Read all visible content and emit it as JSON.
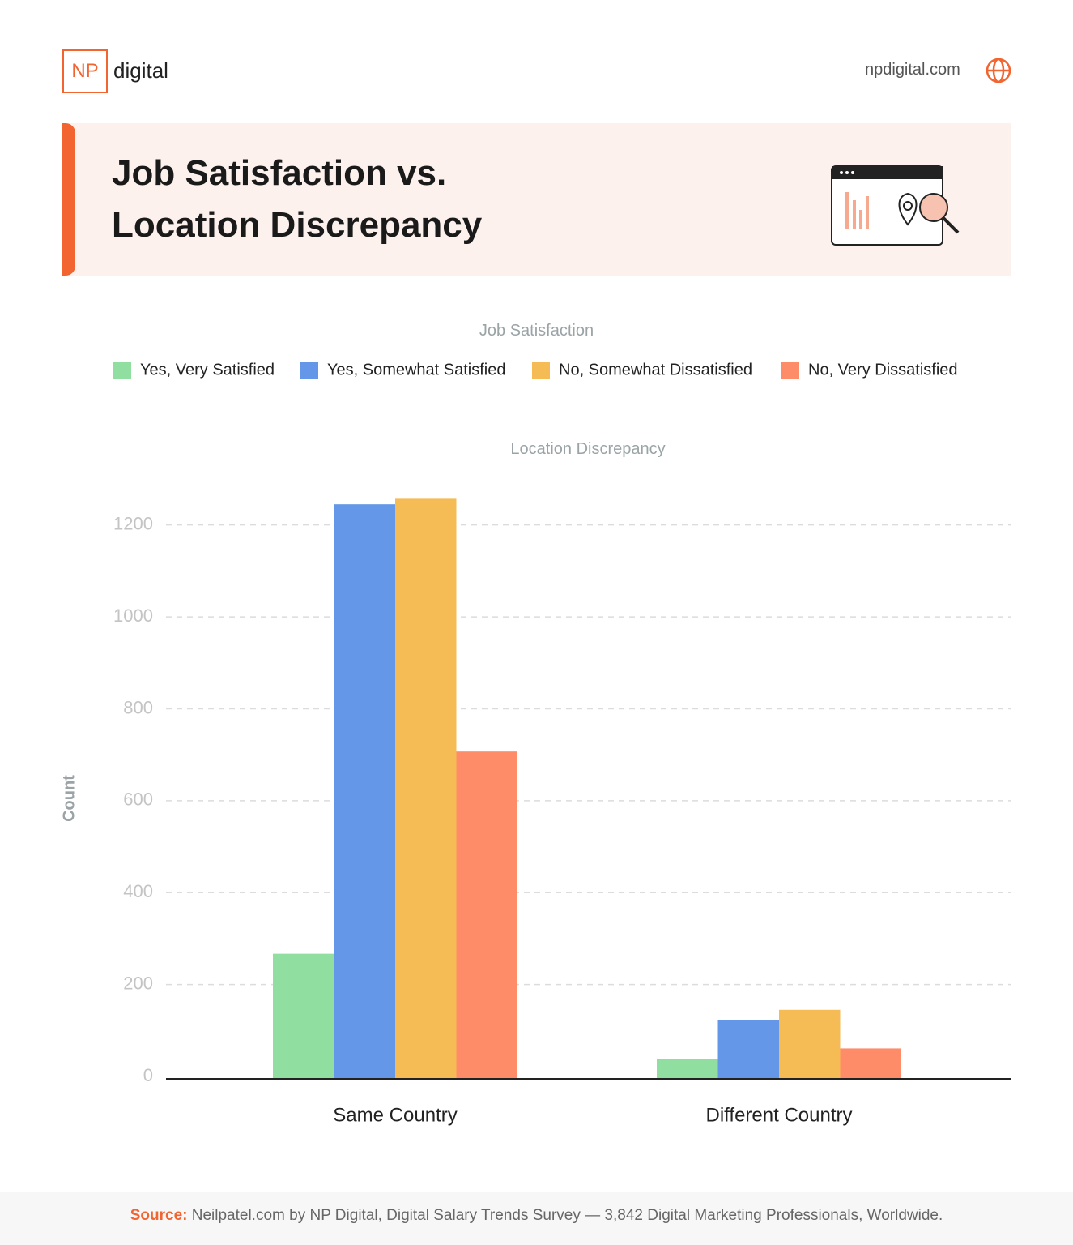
{
  "header": {
    "logo_box": "NP",
    "logo_word": "digital",
    "site": "npdigital.com"
  },
  "chart_data": {
    "type": "bar",
    "title": "Job Satisfaction vs. Location Discrepancy",
    "legend_title": "Job Satisfaction",
    "x_label": "Location Discrepancy",
    "y_label": "Count",
    "categories": [
      "Same Country",
      "Different Country"
    ],
    "series": [
      {
        "name": "Yes, Very Satisfied",
        "color": "#90dfa0",
        "values": [
          267,
          38
        ]
      },
      {
        "name": "Yes, Somewhat Satisfied",
        "color": "#6497e8",
        "values": [
          1245,
          122
        ]
      },
      {
        "name": "No, Somewhat Dissatisfied",
        "color": "#f5bb55",
        "values": [
          1257,
          145
        ]
      },
      {
        "name": "No, Very Dissatisfied",
        "color": "#ff8c69",
        "values": [
          707,
          61
        ]
      }
    ],
    "ylim": [
      0,
      1270
    ],
    "yticks": [
      0,
      200,
      400,
      600,
      800,
      1000,
      1200
    ],
    "grid": true
  },
  "footer": {
    "source_label": "Source:",
    "source_text": "Neilpatel.com by NP Digital, Digital Salary Trends Survey — 3,842 Digital Marketing Professionals, Worldwide."
  }
}
